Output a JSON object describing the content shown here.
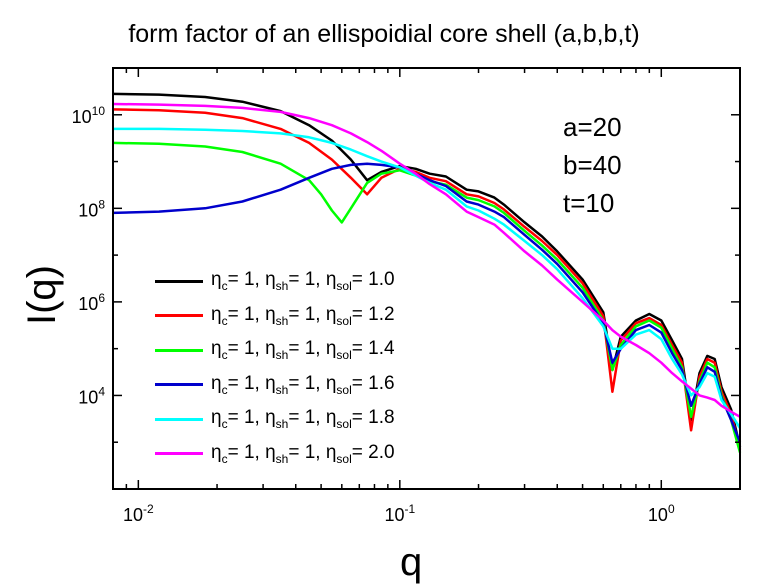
{
  "chart_data": {
    "type": "line",
    "title": "form factor of an ellispoidial core shell (a,b,b,t)",
    "xlabel": "q",
    "ylabel": "I(q)",
    "x_scale": "log",
    "y_scale": "log",
    "xlim": [
      0.008,
      2.0
    ],
    "ylim": [
      100,
      100000000000.0
    ],
    "x_ticks": [
      {
        "value": 0.01,
        "base": "10",
        "exp": "-2"
      },
      {
        "value": 0.1,
        "base": "10",
        "exp": "-1"
      },
      {
        "value": 1,
        "base": "10",
        "exp": "0"
      }
    ],
    "y_ticks": [
      {
        "value": 10000,
        "base": "10",
        "exp": "4"
      },
      {
        "value": 1000000,
        "base": "10",
        "exp": "6"
      },
      {
        "value": 100000000,
        "base": "10",
        "exp": "8"
      },
      {
        "value": 10000000000,
        "base": "10",
        "exp": "10"
      }
    ],
    "annotations": [
      "a=20",
      "b=40",
      "t=10"
    ],
    "legend_placement": "lower-left",
    "series": [
      {
        "label_parts": [
          "1",
          "1",
          "1.0"
        ],
        "color": "#000000",
        "x": [
          0.008,
          0.012,
          0.018,
          0.025,
          0.035,
          0.045,
          0.055,
          0.065,
          0.075,
          0.085,
          0.1,
          0.115,
          0.13,
          0.15,
          0.18,
          0.2,
          0.23,
          0.25,
          0.3,
          0.35,
          0.4,
          0.5,
          0.6,
          0.65,
          0.7,
          0.8,
          0.9,
          1.0,
          1.1,
          1.2,
          1.3,
          1.4,
          1.5,
          1.6,
          1.7,
          1.85,
          2.0
        ],
        "y": [
          28000000000.0,
          27000000000.0,
          24000000000.0,
          19000000000.0,
          12000000000.0,
          6000000000.0,
          2800000000.0,
          1100000000.0,
          400000000.0,
          600000000.0,
          800000000.0,
          700000000.0,
          550000000.0,
          480000000.0,
          250000000.0,
          230000000.0,
          170000000.0,
          120000000.0,
          50000000.0,
          25000000.0,
          12000000.0,
          3000000.0,
          600000.0,
          35000.0,
          180000.0,
          400000.0,
          550000.0,
          400000.0,
          150000.0,
          60000.0,
          3000.0,
          30000.0,
          70000.0,
          60000.0,
          15000.0,
          5000.0,
          800.0
        ]
      },
      {
        "label_parts": [
          "1",
          "1",
          "1.2"
        ],
        "color": "#ff0000",
        "x": [
          0.008,
          0.012,
          0.018,
          0.025,
          0.035,
          0.045,
          0.055,
          0.065,
          0.075,
          0.085,
          0.1,
          0.115,
          0.13,
          0.15,
          0.18,
          0.2,
          0.23,
          0.25,
          0.3,
          0.35,
          0.4,
          0.5,
          0.6,
          0.65,
          0.7,
          0.8,
          0.9,
          1.0,
          1.1,
          1.2,
          1.3,
          1.4,
          1.5,
          1.6,
          1.7,
          1.85,
          2.0
        ],
        "y": [
          13000000000.0,
          12500000000.0,
          11000000000.0,
          8500000000.0,
          5000000000.0,
          2500000000.0,
          1100000000.0,
          450000000.0,
          200000000.0,
          450000000.0,
          700000000.0,
          600000000.0,
          450000000.0,
          380000000.0,
          200000000.0,
          180000000.0,
          130000000.0,
          95000000.0,
          40000000.0,
          20000000.0,
          10000000.0,
          2500000.0,
          500000.0,
          12000.0,
          150000.0,
          350000.0,
          450000.0,
          320000.0,
          120000.0,
          50000.0,
          1800.0,
          25000.0,
          60000.0,
          50000.0,
          12000.0,
          4000.0,
          700.0
        ]
      },
      {
        "label_parts": [
          "1",
          "1",
          "1.4"
        ],
        "color": "#00ff00",
        "x": [
          0.008,
          0.012,
          0.018,
          0.025,
          0.035,
          0.045,
          0.05,
          0.055,
          0.06,
          0.065,
          0.075,
          0.085,
          0.1,
          0.115,
          0.13,
          0.15,
          0.18,
          0.2,
          0.23,
          0.25,
          0.3,
          0.35,
          0.4,
          0.5,
          0.6,
          0.65,
          0.7,
          0.8,
          0.9,
          1.0,
          1.1,
          1.2,
          1.3,
          1.4,
          1.5,
          1.6,
          1.7,
          1.85,
          2.0
        ],
        "y": [
          2500000000.0,
          2400000000.0,
          2100000000.0,
          1600000000.0,
          900000000.0,
          400000000.0,
          200000000.0,
          90000000.0,
          50000000.0,
          100000000.0,
          350000000.0,
          550000000.0,
          650000000.0,
          500000000.0,
          380000000.0,
          320000000.0,
          170000000.0,
          150000000.0,
          110000000.0,
          80000000.0,
          33000000.0,
          16000000.0,
          8000000.0,
          2000000.0,
          400000.0,
          35000.0,
          120000.0,
          300000.0,
          400000.0,
          280000.0,
          100000.0,
          40000.0,
          3500.0,
          20000.0,
          50000.0,
          40000.0,
          10000.0,
          3000.0,
          600.0
        ]
      },
      {
        "label_parts": [
          "1",
          "1",
          "1.6"
        ],
        "color": "#0000cc",
        "x": [
          0.008,
          0.012,
          0.018,
          0.025,
          0.035,
          0.045,
          0.055,
          0.065,
          0.075,
          0.085,
          0.1,
          0.115,
          0.13,
          0.15,
          0.18,
          0.2,
          0.23,
          0.25,
          0.3,
          0.35,
          0.4,
          0.5,
          0.6,
          0.65,
          0.7,
          0.8,
          0.9,
          1.0,
          1.1,
          1.2,
          1.3,
          1.4,
          1.5,
          1.6,
          1.7,
          1.85,
          2.0
        ],
        "y": [
          80000000.0,
          85000000.0,
          100000000.0,
          140000000.0,
          250000000.0,
          450000000.0,
          700000000.0,
          850000000.0,
          900000000.0,
          850000000.0,
          750000000.0,
          550000000.0,
          400000000.0,
          300000000.0,
          140000000.0,
          120000000.0,
          85000000.0,
          65000000.0,
          27000000.0,
          13000000.0,
          6500000.0,
          1600000.0,
          350000.0,
          50000.0,
          100000.0,
          250000.0,
          320000.0,
          220000.0,
          80000.0,
          35000.0,
          6000.0,
          18000.0,
          40000.0,
          32000.0,
          9000.0,
          3000.0,
          1000.0
        ]
      },
      {
        "label_parts": [
          "1",
          "1",
          "1.8"
        ],
        "color": "#00ffff",
        "x": [
          0.008,
          0.012,
          0.018,
          0.025,
          0.035,
          0.045,
          0.055,
          0.065,
          0.075,
          0.085,
          0.1,
          0.115,
          0.13,
          0.15,
          0.18,
          0.2,
          0.23,
          0.25,
          0.3,
          0.35,
          0.4,
          0.5,
          0.6,
          0.65,
          0.7,
          0.8,
          0.9,
          1.0,
          1.1,
          1.2,
          1.3,
          1.4,
          1.5,
          1.6,
          1.7,
          1.85,
          2.0
        ],
        "y": [
          5000000000.0,
          5000000000.0,
          4800000000.0,
          4500000000.0,
          4000000000.0,
          3300000000.0,
          2500000000.0,
          1800000000.0,
          1300000000.0,
          1000000000.0,
          750000000.0,
          500000000.0,
          350000000.0,
          250000000.0,
          110000000.0,
          90000000.0,
          60000000.0,
          45000000.0,
          20000000.0,
          10000000.0,
          5000000.0,
          1200000.0,
          300000.0,
          100000.0,
          100000.0,
          200000.0,
          250000.0,
          160000.0,
          60000.0,
          28000.0,
          10000.0,
          15000.0,
          30000.0,
          25000.0,
          8000.0,
          4000.0,
          2000.0
        ]
      },
      {
        "label_parts": [
          "1",
          "1",
          "2.0"
        ],
        "color": "#ff00ff",
        "x": [
          0.008,
          0.012,
          0.018,
          0.025,
          0.035,
          0.045,
          0.055,
          0.065,
          0.075,
          0.085,
          0.1,
          0.115,
          0.13,
          0.15,
          0.18,
          0.2,
          0.23,
          0.25,
          0.3,
          0.35,
          0.4,
          0.5,
          0.6,
          0.65,
          0.7,
          0.8,
          0.9,
          1.0,
          1.1,
          1.2,
          1.3,
          1.4,
          1.5,
          1.6,
          1.7,
          1.85,
          2.0
        ],
        "y": [
          17000000000.0,
          16500000000.0,
          15500000000.0,
          14000000000.0,
          11500000000.0,
          8500000000.0,
          6000000000.0,
          4000000000.0,
          2600000000.0,
          1700000000.0,
          900000000.0,
          550000000.0,
          330000000.0,
          200000000.0,
          85000000.0,
          65000000.0,
          45000000.0,
          30000000.0,
          12000000.0,
          6000000.0,
          3000000.0,
          1000000.0,
          400000.0,
          250000.0,
          180000.0,
          120000.0,
          80000.0,
          50000.0,
          30000.0,
          20000.0,
          14000.0,
          10000.0,
          9000.0,
          8000.0,
          6000.0,
          4500.0,
          3500.0
        ]
      }
    ]
  }
}
